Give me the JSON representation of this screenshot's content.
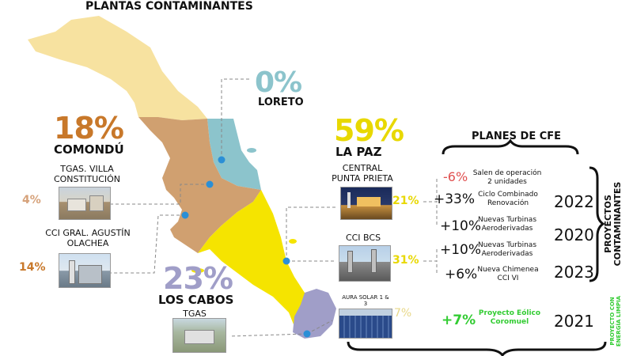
{
  "title": "PLANTAS CONTAMINANTES",
  "regions": {
    "loreto": {
      "pct": "0%",
      "name": "LORETO",
      "color": "#8cc4cc"
    },
    "comondu": {
      "pct": "18%",
      "name": "COMONDÚ",
      "color": "#d0a070",
      "plants": [
        {
          "name": "TGAS. VILLA CONSTITUCIÓN",
          "pct": "4%",
          "pct_color": "#d6a27a"
        },
        {
          "name": "CCI GRAL. AGUSTÍN OLACHEA",
          "pct": "14%",
          "pct_color": "#c8782a"
        }
      ]
    },
    "lapaz": {
      "pct": "59%",
      "name": "LA PAZ",
      "color": "#f5e400",
      "plants": [
        {
          "name": "CENTRAL PUNTA PRIETA",
          "pct": "21%"
        },
        {
          "name": "CCI BCS",
          "pct": "31%"
        }
      ]
    },
    "loscabos": {
      "pct": "23%",
      "name": "LOS CABOS",
      "color": "#a09ec8",
      "plants": [
        {
          "name": "TGAS"
        },
        {
          "name": "AURA SOLAR 1 & 3",
          "pct": "7%"
        }
      ]
    },
    "mulege": {
      "color": "#f7e2a0"
    }
  },
  "planes": {
    "title": "PLANES DE CFE",
    "rows": [
      {
        "change": "-6%",
        "desc": "Salen de operación 2 unidades",
        "change_color": "#e05050"
      },
      {
        "change": "+33%",
        "desc": "Ciclo Combinado Renovación",
        "year": "2022"
      },
      {
        "change": "+10%",
        "desc": "Nuevas Turbinas Aeroderivadas",
        "year": "2020"
      },
      {
        "change": "+10%",
        "desc": "Nuevas Turbinas Aeroderivadas"
      },
      {
        "change": "+6%",
        "desc": "Nueva Chimenea CCI VI",
        "year": "2023"
      },
      {
        "change": "+7%",
        "desc": "Proyecto Eólico Coromuel",
        "year": "2021",
        "change_color": "#33cc33"
      }
    ],
    "side_label_1": "PROYECTOS CONTAMINANTES",
    "side_label_2": "PROYECTO CON ENERGÍA LIMPIA"
  },
  "colors": {
    "clean_green": "#33cc33",
    "dot_blue": "#2b8fd6"
  }
}
